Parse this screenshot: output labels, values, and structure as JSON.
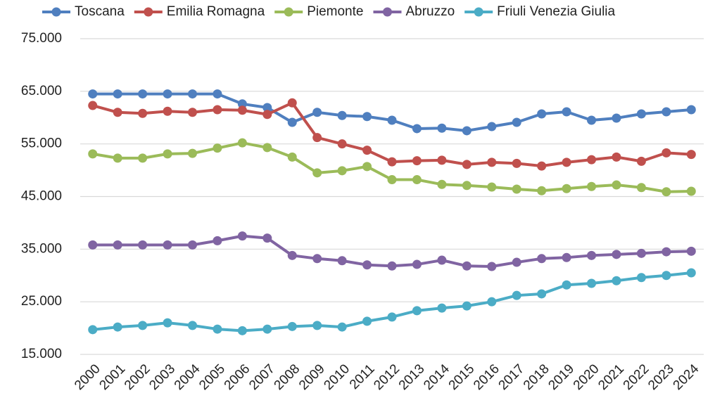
{
  "chart_data": {
    "type": "line",
    "categories": [
      "2000",
      "2001",
      "2002",
      "2003",
      "2004",
      "2005",
      "2006",
      "2007",
      "2008",
      "2009",
      "2010",
      "2011",
      "2012",
      "2013",
      "2014",
      "2015",
      "2016",
      "2017",
      "2018",
      "2019",
      "2020",
      "2021",
      "2022",
      "2023",
      "2024"
    ],
    "series": [
      {
        "name": "Toscana",
        "color": "#4f7fbf",
        "values": [
          64500,
          64500,
          64500,
          64500,
          64500,
          64500,
          62600,
          61900,
          59100,
          61000,
          60400,
          60200,
          59500,
          57900,
          58000,
          57500,
          58300,
          59100,
          60700,
          61100,
          59500,
          59900,
          60700,
          61100,
          61500
        ]
      },
      {
        "name": "Emilia Romagna",
        "color": "#c0504d",
        "values": [
          62300,
          61000,
          60800,
          61200,
          61000,
          61500,
          61400,
          60600,
          62800,
          56200,
          55000,
          53800,
          51600,
          51800,
          51900,
          51100,
          51500,
          51300,
          50800,
          51500,
          52000,
          52500,
          51700,
          53300,
          53000
        ]
      },
      {
        "name": "Piemonte",
        "color": "#9bbb59",
        "values": [
          53100,
          52300,
          52300,
          53100,
          53200,
          54200,
          55200,
          54300,
          52500,
          49500,
          49900,
          50700,
          48200,
          48200,
          47300,
          47100,
          46800,
          46400,
          46100,
          46500,
          46900,
          47200,
          46700,
          45900,
          46000
        ]
      },
      {
        "name": "Abruzzo",
        "color": "#8064a2",
        "values": [
          35800,
          35800,
          35800,
          35800,
          35800,
          36600,
          37500,
          37100,
          33800,
          33200,
          32800,
          32000,
          31800,
          32100,
          32900,
          31800,
          31700,
          32500,
          33200,
          33400,
          33800,
          34000,
          34200,
          34500,
          34600
        ]
      },
      {
        "name": "Friuli Venezia Giulia",
        "color": "#4bacc6",
        "values": [
          19700,
          20200,
          20500,
          21000,
          20500,
          19800,
          19500,
          19800,
          20300,
          20500,
          20200,
          21300,
          22100,
          23300,
          23800,
          24200,
          25000,
          26200,
          26500,
          28200,
          28500,
          29000,
          29600,
          30000,
          30500
        ]
      }
    ],
    "ylim": [
      15000,
      75000
    ],
    "yticks": [
      {
        "value": 15000,
        "label": "15.000"
      },
      {
        "value": 25000,
        "label": "25.000"
      },
      {
        "value": 35000,
        "label": "35.000"
      },
      {
        "value": 45000,
        "label": "45.000"
      },
      {
        "value": 55000,
        "label": "55.000"
      },
      {
        "value": 65000,
        "label": "65.000"
      },
      {
        "value": 75000,
        "label": "75.000"
      }
    ],
    "grid": true
  }
}
